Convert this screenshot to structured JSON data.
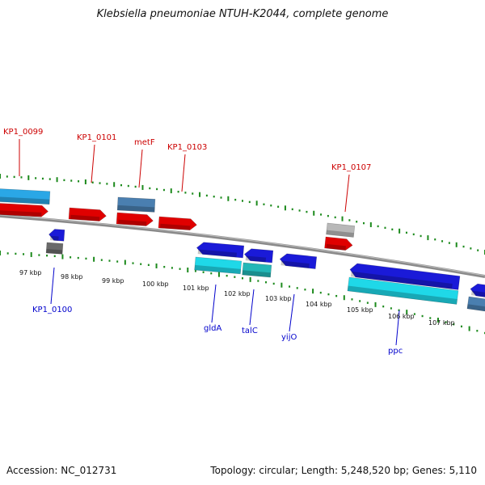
{
  "title": "Klebsiella pneumoniae NTUH-K2044, complete genome",
  "footer": {
    "accession": "Accession: NC_012731",
    "topology": "Topology: circular; Length: 5,248,520 bp; Genes: 5,110"
  },
  "colors": {
    "forward_cds": "#e00000",
    "reverse_cds": "#1a1ad8",
    "forward_feature": "#2aa7e6",
    "reverse_feature": "#1fd8e8",
    "steel_feature": "#4a7fb0",
    "gray_feature": "#b8b8b8",
    "dark_gray_feature": "#6a6a6a",
    "teal_feature": "#23b7b7",
    "backbone": "#8a8a8a",
    "tick": "#1c8a1c",
    "forward_label": "#cc0000",
    "reverse_label": "#0000cc"
  },
  "kbp_labels": [
    "97 kbp",
    "98 kbp",
    "99 kbp",
    "100 kbp",
    "101 kbp",
    "102 kbp",
    "103 kbp",
    "104 kbp",
    "105 kbp",
    "106 kbp",
    "107 kbp"
  ],
  "forward_gene_labels": [
    "KP1_0099",
    "KP1_0101",
    "metF",
    "KP1_0103",
    "KP1_0107"
  ],
  "reverse_gene_labels": [
    "KP1_0100",
    "gldA",
    "talC",
    "yijO",
    "ppc"
  ]
}
